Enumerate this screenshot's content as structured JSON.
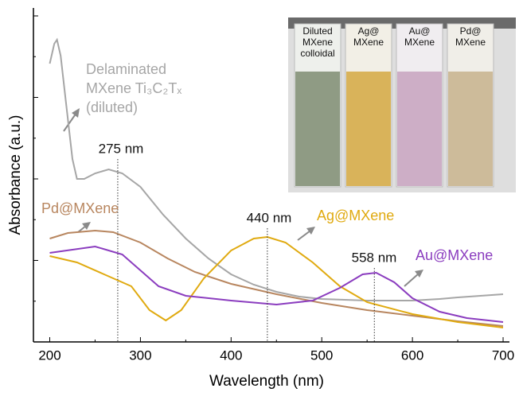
{
  "chart_data": {
    "type": "line",
    "xlabel": "Wavelength (nm)",
    "ylabel": "Absorbance (a.u.)",
    "xlim": [
      182,
      707
    ],
    "ylim": [
      0,
      4.2
    ],
    "xticks": [
      200,
      300,
      400,
      500,
      600,
      700
    ],
    "series": [
      {
        "name": [
          "Delaminated",
          "MXene Ti₃C₂Tₓ",
          "(diluted)"
        ],
        "color": "#a6a6a6",
        "x": [
          200,
          205,
          208,
          212,
          218,
          225,
          230,
          238,
          250,
          265,
          280,
          300,
          325,
          350,
          375,
          400,
          425,
          450,
          475,
          500,
          550,
          600,
          630,
          650,
          700
        ],
        "values": [
          3.5,
          3.75,
          3.8,
          3.6,
          3.0,
          2.3,
          2.05,
          2.05,
          2.12,
          2.17,
          2.12,
          1.95,
          1.6,
          1.3,
          1.05,
          0.85,
          0.72,
          0.63,
          0.57,
          0.54,
          0.52,
          0.52,
          0.54,
          0.56,
          0.6
        ]
      },
      {
        "name": "Pd@MXene",
        "color": "#b8865f",
        "x": [
          200,
          220,
          250,
          270,
          300,
          330,
          360,
          400,
          450,
          500,
          550,
          600,
          650,
          700
        ],
        "values": [
          1.3,
          1.37,
          1.4,
          1.38,
          1.25,
          1.05,
          0.88,
          0.73,
          0.6,
          0.49,
          0.4,
          0.33,
          0.26,
          0.2
        ]
      },
      {
        "name": "Ag@MXene",
        "color": "#e0aa10",
        "x": [
          200,
          230,
          260,
          290,
          310,
          328,
          345,
          370,
          400,
          425,
          440,
          460,
          490,
          520,
          550,
          600,
          650,
          700
        ],
        "values": [
          1.08,
          1.0,
          0.85,
          0.7,
          0.4,
          0.27,
          0.4,
          0.8,
          1.15,
          1.3,
          1.32,
          1.25,
          1.0,
          0.7,
          0.5,
          0.35,
          0.25,
          0.18
        ]
      },
      {
        "name": "Au@MXene",
        "color": "#8b3dbf",
        "x": [
          200,
          250,
          280,
          300,
          320,
          350,
          400,
          450,
          490,
          520,
          545,
          560,
          580,
          600,
          630,
          660,
          700
        ],
        "values": [
          1.12,
          1.2,
          1.1,
          0.9,
          0.7,
          0.58,
          0.52,
          0.47,
          0.52,
          0.68,
          0.85,
          0.87,
          0.75,
          0.55,
          0.38,
          0.3,
          0.25
        ]
      }
    ],
    "annotations": [
      {
        "x": 275,
        "text": "275 nm"
      },
      {
        "x": 440,
        "text": "440 nm"
      },
      {
        "x": 558,
        "text": "558 nm"
      }
    ],
    "inset_labels": [
      [
        "Diluted",
        "MXene",
        "colloidal"
      ],
      [
        "Ag@",
        "MXene"
      ],
      [
        "Au@",
        "MXene"
      ],
      [
        "Pd@",
        "MXene"
      ]
    ]
  }
}
